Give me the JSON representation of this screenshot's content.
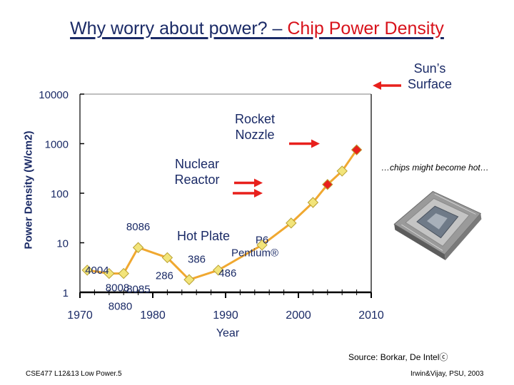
{
  "slide": {
    "title_part1": "Why worry about power? – ",
    "title_part2": "Chip Power Density",
    "ylabel": "Power Density (W/cm2)",
    "source": "Source: Borkar, De Intelⓒ",
    "footer_left": "CSE477  L12&13 Low Power.5",
    "footer_right": "Irwin&Vijay, PSU, 2003",
    "chip_caption": "…chips might become hot…",
    "accent_color": "#d8121b",
    "line_color": "#f0a830",
    "marker_color": "#f2e47a",
    "marker_red": "#e8201c",
    "arrow_color": "#e8201c",
    "title_color": "#1a2a66"
  },
  "chart_data": {
    "type": "line",
    "title": "Why worry about power? – Chip Power Density",
    "ylabel": "Power Density (W/cm2)",
    "xlabel": "Year",
    "y_scale": "log",
    "xlim": [
      1970,
      2010
    ],
    "ylim": [
      1,
      10000
    ],
    "x_ticks": [
      "1970",
      "1980",
      "1990",
      "2000",
      "2010"
    ],
    "y_ticks": [
      "1",
      "10",
      "100",
      "1000",
      "10000"
    ],
    "points": [
      {
        "x": 1971,
        "y": 2.8,
        "label": "4004",
        "color": "yellow"
      },
      {
        "x": 1974,
        "y": 2.4,
        "label": "8008",
        "color": "yellow"
      },
      {
        "x": 1974,
        "y": 2.4,
        "label": "8080",
        "color": "yellow"
      },
      {
        "x": 1976,
        "y": 2.4,
        "label": "8085",
        "color": "yellow"
      },
      {
        "x": 1978,
        "y": 8,
        "label": "8086",
        "color": "yellow"
      },
      {
        "x": 1982,
        "y": 5,
        "label": "286",
        "color": "yellow"
      },
      {
        "x": 1985,
        "y": 1.8,
        "label": "386",
        "color": "yellow"
      },
      {
        "x": 1989,
        "y": 2.8,
        "label": "486",
        "color": "yellow"
      },
      {
        "x": 1995,
        "y": 9,
        "label": "P6 Pentium®",
        "color": "yellow"
      },
      {
        "x": 1999,
        "y": 25,
        "label": "",
        "color": "yellow"
      },
      {
        "x": 2002,
        "y": 65,
        "label": "",
        "color": "yellow"
      },
      {
        "x": 2004,
        "y": 150,
        "label": "",
        "color": "red"
      },
      {
        "x": 2006,
        "y": 280,
        "label": "",
        "color": "yellow"
      },
      {
        "x": 2008,
        "y": 750,
        "label": "",
        "color": "red"
      }
    ],
    "reference_levels": [
      {
        "label": "Hot Plate",
        "y": 10
      },
      {
        "label": "Nuclear Reactor",
        "y": 100
      },
      {
        "label": "Rocket Nozzle",
        "y": 1000
      },
      {
        "label": "Sun’s Surface",
        "y": 10000
      }
    ],
    "grid": false,
    "legend": "none"
  }
}
